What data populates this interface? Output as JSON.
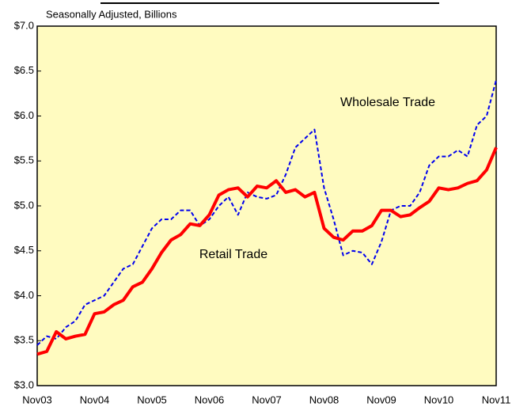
{
  "chart_data": {
    "type": "line",
    "subtitle": "Seasonally Adjusted, Billions",
    "categories": [
      "Nov03",
      null,
      null,
      null,
      null,
      null,
      "Nov04",
      null,
      null,
      null,
      null,
      null,
      "Nov05",
      null,
      null,
      null,
      null,
      null,
      "Nov06",
      null,
      null,
      null,
      null,
      null,
      "Nov07",
      null,
      null,
      null,
      null,
      null,
      "Nov08",
      null,
      null,
      null,
      null,
      null,
      "Nov09",
      null,
      null,
      null,
      null,
      null,
      "Nov10",
      null,
      null,
      null,
      null,
      null,
      "Nov11"
    ],
    "series": [
      {
        "name": "Wholesale Trade",
        "color": "#0000ee",
        "dashed": true,
        "values": [
          3.45,
          3.55,
          3.52,
          3.65,
          3.72,
          3.9,
          3.95,
          4.0,
          4.15,
          4.3,
          4.35,
          4.55,
          4.75,
          4.85,
          4.85,
          4.95,
          4.95,
          4.78,
          4.85,
          5.0,
          5.1,
          4.9,
          5.15,
          5.1,
          5.08,
          5.12,
          5.35,
          5.65,
          5.75,
          5.85,
          5.2,
          4.85,
          4.45,
          4.5,
          4.48,
          4.35,
          4.6,
          4.95,
          5.0,
          5.0,
          5.15,
          5.45,
          5.55,
          5.55,
          5.62,
          5.55,
          5.9,
          6.0,
          6.4
        ]
      },
      {
        "name": "Retail Trade",
        "color": "#ff0000",
        "dashed": false,
        "values": [
          3.35,
          3.38,
          3.6,
          3.52,
          3.55,
          3.57,
          3.8,
          3.82,
          3.9,
          3.95,
          4.1,
          4.15,
          4.3,
          4.48,
          4.62,
          4.68,
          4.8,
          4.78,
          4.9,
          5.12,
          5.18,
          5.2,
          5.1,
          5.22,
          5.2,
          5.28,
          5.15,
          5.18,
          5.1,
          5.15,
          4.75,
          4.65,
          4.62,
          4.72,
          4.72,
          4.78,
          4.95,
          4.95,
          4.88,
          4.9,
          4.98,
          5.05,
          5.2,
          5.18,
          5.2,
          5.25,
          5.28,
          5.4,
          5.65
        ]
      }
    ],
    "ylim": [
      3.0,
      7.0
    ],
    "yticks": [
      {
        "value": 3.0,
        "label": "$3.0"
      },
      {
        "value": 3.5,
        "label": "$3.5"
      },
      {
        "value": 4.0,
        "label": "$4.0"
      },
      {
        "value": 4.5,
        "label": "$4.5"
      },
      {
        "value": 5.0,
        "label": "$5.0"
      },
      {
        "value": 5.5,
        "label": "$5.5"
      },
      {
        "value": 6.0,
        "label": "$6.0"
      },
      {
        "value": 6.5,
        "label": "$6.5"
      },
      {
        "value": 7.0,
        "label": "$7.0"
      }
    ],
    "background": "#fffbc0"
  }
}
